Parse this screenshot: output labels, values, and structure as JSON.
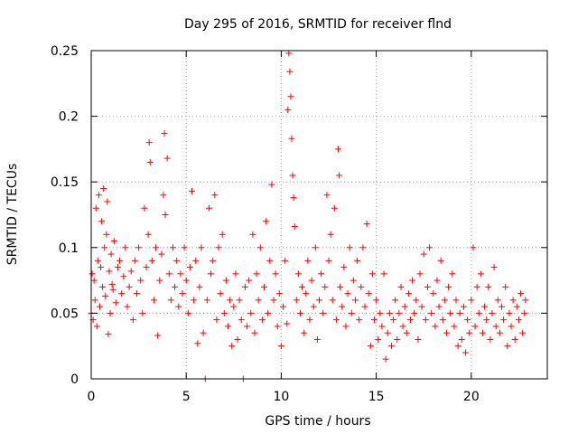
{
  "chart_data": {
    "type": "scatter",
    "title": "Day 295 of 2016, SRMTID for receiver flnd",
    "xlabel": "GPS time / hours",
    "ylabel": "SRMTID / TECUs",
    "xlim": [
      0,
      24
    ],
    "ylim": [
      0,
      0.25
    ],
    "xticks": [
      0,
      5,
      10,
      15,
      20
    ],
    "xtick_labels": [
      "0",
      "5",
      "10",
      "15",
      "20"
    ],
    "yticks": [
      0,
      0.05,
      0.1,
      0.15,
      0.2,
      0.25
    ],
    "ytick_labels": [
      "0",
      "0.05",
      "0.1",
      "0.15",
      "0.2",
      "0.25"
    ],
    "grid": true,
    "marker": "+",
    "series_color": "#ff0000",
    "series": [
      {
        "name": "SRMTID",
        "points": [
          [
            0.0,
            0.05
          ],
          [
            0.05,
            0.08
          ],
          [
            0.1,
            0.045
          ],
          [
            0.15,
            0.075
          ],
          [
            0.2,
            0.06
          ],
          [
            0.25,
            0.13
          ],
          [
            0.3,
            0.04
          ],
          [
            0.35,
            0.09
          ],
          [
            0.4,
            0.14
          ],
          [
            0.45,
            0.055
          ],
          [
            0.5,
            0.085
          ],
          [
            0.55,
            0.12
          ],
          [
            0.6,
            0.07
          ],
          [
            0.65,
            0.145
          ],
          [
            0.7,
            0.1
          ],
          [
            0.75,
            0.063
          ],
          [
            0.8,
            0.11
          ],
          [
            0.85,
            0.135
          ],
          [
            0.9,
            0.034
          ],
          [
            0.95,
            0.082
          ],
          [
            1.0,
            0.05
          ],
          [
            1.05,
            0.095
          ],
          [
            1.1,
            0.072
          ],
          [
            1.15,
            0.068
          ],
          [
            1.2,
            0.105
          ],
          [
            1.3,
            0.058
          ],
          [
            1.4,
            0.085
          ],
          [
            1.5,
            0.09
          ],
          [
            1.6,
            0.065
          ],
          [
            1.7,
            0.078
          ],
          [
            1.8,
            0.1
          ],
          [
            1.9,
            0.055
          ],
          [
            2.0,
            0.07
          ],
          [
            2.1,
            0.082
          ],
          [
            2.2,
            0.045
          ],
          [
            2.3,
            0.09
          ],
          [
            2.4,
            0.065
          ],
          [
            2.5,
            0.1
          ],
          [
            2.6,
            0.075
          ],
          [
            2.7,
            0.05
          ],
          [
            2.8,
            0.13
          ],
          [
            2.9,
            0.085
          ],
          [
            3.0,
            0.11
          ],
          [
            3.05,
            0.18
          ],
          [
            3.1,
            0.165
          ],
          [
            3.2,
            0.09
          ],
          [
            3.3,
            0.06
          ],
          [
            3.4,
            0.1
          ],
          [
            3.5,
            0.033
          ],
          [
            3.6,
            0.075
          ],
          [
            3.7,
            0.095
          ],
          [
            3.8,
            0.14
          ],
          [
            3.85,
            0.187
          ],
          [
            3.9,
            0.125
          ],
          [
            4.0,
            0.168
          ],
          [
            4.1,
            0.08
          ],
          [
            4.2,
            0.06
          ],
          [
            4.3,
            0.1
          ],
          [
            4.4,
            0.07
          ],
          [
            4.5,
            0.09
          ],
          [
            4.6,
            0.055
          ],
          [
            4.7,
            0.08
          ],
          [
            4.8,
            0.065
          ],
          [
            4.9,
            0.1
          ],
          [
            5.0,
            0.075
          ],
          [
            5.1,
            0.05
          ],
          [
            5.2,
            0.085
          ],
          [
            5.3,
            0.143
          ],
          [
            5.4,
            0.06
          ],
          [
            5.5,
            0.09
          ],
          [
            5.6,
            0.027
          ],
          [
            5.7,
            0.07
          ],
          [
            5.8,
            0.1
          ],
          [
            5.9,
            0.035
          ],
          [
            6.0,
            0.0
          ],
          [
            6.1,
            0.06
          ],
          [
            6.2,
            0.13
          ],
          [
            6.3,
            0.08
          ],
          [
            6.4,
            0.09
          ],
          [
            6.5,
            0.14
          ],
          [
            6.6,
            0.045
          ],
          [
            6.7,
            0.1
          ],
          [
            6.8,
            0.065
          ],
          [
            6.9,
            0.11
          ],
          [
            7.0,
            0.05
          ],
          [
            7.1,
            0.075
          ],
          [
            7.2,
            0.04
          ],
          [
            7.3,
            0.06
          ],
          [
            7.4,
            0.025
          ],
          [
            7.5,
            0.055
          ],
          [
            7.6,
            0.08
          ],
          [
            7.7,
            0.03
          ],
          [
            7.8,
            0.06
          ],
          [
            7.9,
            0.045
          ],
          [
            8.0,
            0.0
          ],
          [
            8.1,
            0.07
          ],
          [
            8.2,
            0.04
          ],
          [
            8.3,
            0.075
          ],
          [
            8.4,
            0.05
          ],
          [
            8.5,
            0.11
          ],
          [
            8.6,
            0.035
          ],
          [
            8.7,
            0.08
          ],
          [
            8.8,
            0.06
          ],
          [
            8.9,
            0.1
          ],
          [
            9.0,
            0.045
          ],
          [
            9.1,
            0.07
          ],
          [
            9.2,
            0.12
          ],
          [
            9.3,
            0.05
          ],
          [
            9.4,
            0.09
          ],
          [
            9.5,
            0.148
          ],
          [
            9.6,
            0.06
          ],
          [
            9.7,
            0.08
          ],
          [
            9.8,
            0.04
          ],
          [
            9.9,
            0.065
          ],
          [
            10.0,
            0.025
          ],
          [
            10.1,
            0.055
          ],
          [
            10.2,
            0.09
          ],
          [
            10.3,
            0.042
          ],
          [
            10.35,
            0.205
          ],
          [
            10.4,
            0.248
          ],
          [
            10.45,
            0.234
          ],
          [
            10.5,
            0.215
          ],
          [
            10.55,
            0.183
          ],
          [
            10.6,
            0.155
          ],
          [
            10.65,
            0.138
          ],
          [
            10.7,
            0.116
          ],
          [
            10.8,
            0.06
          ],
          [
            10.9,
            0.08
          ],
          [
            11.0,
            0.05
          ],
          [
            11.1,
            0.07
          ],
          [
            11.2,
            0.035
          ],
          [
            11.3,
            0.065
          ],
          [
            11.4,
            0.09
          ],
          [
            11.5,
            0.045
          ],
          [
            11.6,
            0.075
          ],
          [
            11.7,
            0.055
          ],
          [
            11.8,
            0.1
          ],
          [
            11.9,
            0.03
          ],
          [
            12.0,
            0.06
          ],
          [
            12.1,
            0.08
          ],
          [
            12.2,
            0.05
          ],
          [
            12.3,
            0.07
          ],
          [
            12.4,
            0.14
          ],
          [
            12.5,
            0.09
          ],
          [
            12.6,
            0.11
          ],
          [
            12.7,
            0.06
          ],
          [
            12.8,
            0.13
          ],
          [
            12.9,
            0.045
          ],
          [
            13.0,
            0.175
          ],
          [
            13.05,
            0.155
          ],
          [
            13.1,
            0.07
          ],
          [
            13.2,
            0.055
          ],
          [
            13.3,
            0.085
          ],
          [
            13.4,
            0.04
          ],
          [
            13.5,
            0.065
          ],
          [
            13.6,
            0.1
          ],
          [
            13.7,
            0.05
          ],
          [
            13.8,
            0.075
          ],
          [
            13.9,
            0.06
          ],
          [
            14.0,
            0.09
          ],
          [
            14.1,
            0.045
          ],
          [
            14.2,
            0.07
          ],
          [
            14.3,
            0.1
          ],
          [
            14.4,
            0.055
          ],
          [
            14.5,
            0.118
          ],
          [
            14.6,
            0.065
          ],
          [
            14.7,
            0.025
          ],
          [
            14.8,
            0.08
          ],
          [
            14.9,
            0.045
          ],
          [
            15.0,
            0.06
          ],
          [
            15.1,
            0.03
          ],
          [
            15.2,
            0.05
          ],
          [
            15.3,
            0.04
          ],
          [
            15.4,
            0.08
          ],
          [
            15.5,
            0.015
          ],
          [
            15.6,
            0.035
          ],
          [
            15.7,
            0.05
          ],
          [
            15.8,
            0.025
          ],
          [
            15.9,
            0.045
          ],
          [
            16.0,
            0.06
          ],
          [
            16.1,
            0.03
          ],
          [
            16.2,
            0.05
          ],
          [
            16.3,
            0.07
          ],
          [
            16.4,
            0.04
          ],
          [
            16.5,
            0.055
          ],
          [
            16.6,
            0.035
          ],
          [
            16.7,
            0.065
          ],
          [
            16.8,
            0.045
          ],
          [
            16.9,
            0.075
          ],
          [
            17.0,
            0.05
          ],
          [
            17.1,
            0.06
          ],
          [
            17.2,
            0.03
          ],
          [
            17.3,
            0.08
          ],
          [
            17.4,
            0.055
          ],
          [
            17.5,
            0.095
          ],
          [
            17.6,
            0.045
          ],
          [
            17.7,
            0.07
          ],
          [
            17.8,
            0.1
          ],
          [
            17.9,
            0.05
          ],
          [
            18.0,
            0.065
          ],
          [
            18.1,
            0.04
          ],
          [
            18.2,
            0.075
          ],
          [
            18.3,
            0.055
          ],
          [
            18.4,
            0.09
          ],
          [
            18.5,
            0.045
          ],
          [
            18.6,
            0.06
          ],
          [
            18.7,
            0.035
          ],
          [
            18.8,
            0.07
          ],
          [
            18.9,
            0.05
          ],
          [
            19.0,
            0.08
          ],
          [
            19.1,
            0.04
          ],
          [
            19.2,
            0.06
          ],
          [
            19.3,
            0.025
          ],
          [
            19.4,
            0.05
          ],
          [
            19.5,
            0.03
          ],
          [
            19.6,
            0.055
          ],
          [
            19.7,
            0.02
          ],
          [
            19.8,
            0.045
          ],
          [
            19.9,
            0.035
          ],
          [
            20.0,
            0.06
          ],
          [
            20.1,
            0.1
          ],
          [
            20.2,
            0.04
          ],
          [
            20.3,
            0.07
          ],
          [
            20.4,
            0.05
          ],
          [
            20.5,
            0.08
          ],
          [
            20.6,
            0.035
          ],
          [
            20.7,
            0.055
          ],
          [
            20.8,
            0.045
          ],
          [
            20.9,
            0.07
          ],
          [
            21.0,
            0.03
          ],
          [
            21.1,
            0.05
          ],
          [
            21.2,
            0.085
          ],
          [
            21.3,
            0.04
          ],
          [
            21.4,
            0.06
          ],
          [
            21.5,
            0.035
          ],
          [
            21.6,
            0.055
          ],
          [
            21.7,
            0.045
          ],
          [
            21.8,
            0.07
          ],
          [
            21.9,
            0.025
          ],
          [
            22.0,
            0.05
          ],
          [
            22.1,
            0.04
          ],
          [
            22.2,
            0.06
          ],
          [
            22.3,
            0.03
          ],
          [
            22.4,
            0.055
          ],
          [
            22.5,
            0.045
          ],
          [
            22.6,
            0.065
          ],
          [
            22.7,
            0.035
          ],
          [
            22.8,
            0.05
          ],
          [
            22.85,
            0.06
          ]
        ]
      }
    ]
  }
}
